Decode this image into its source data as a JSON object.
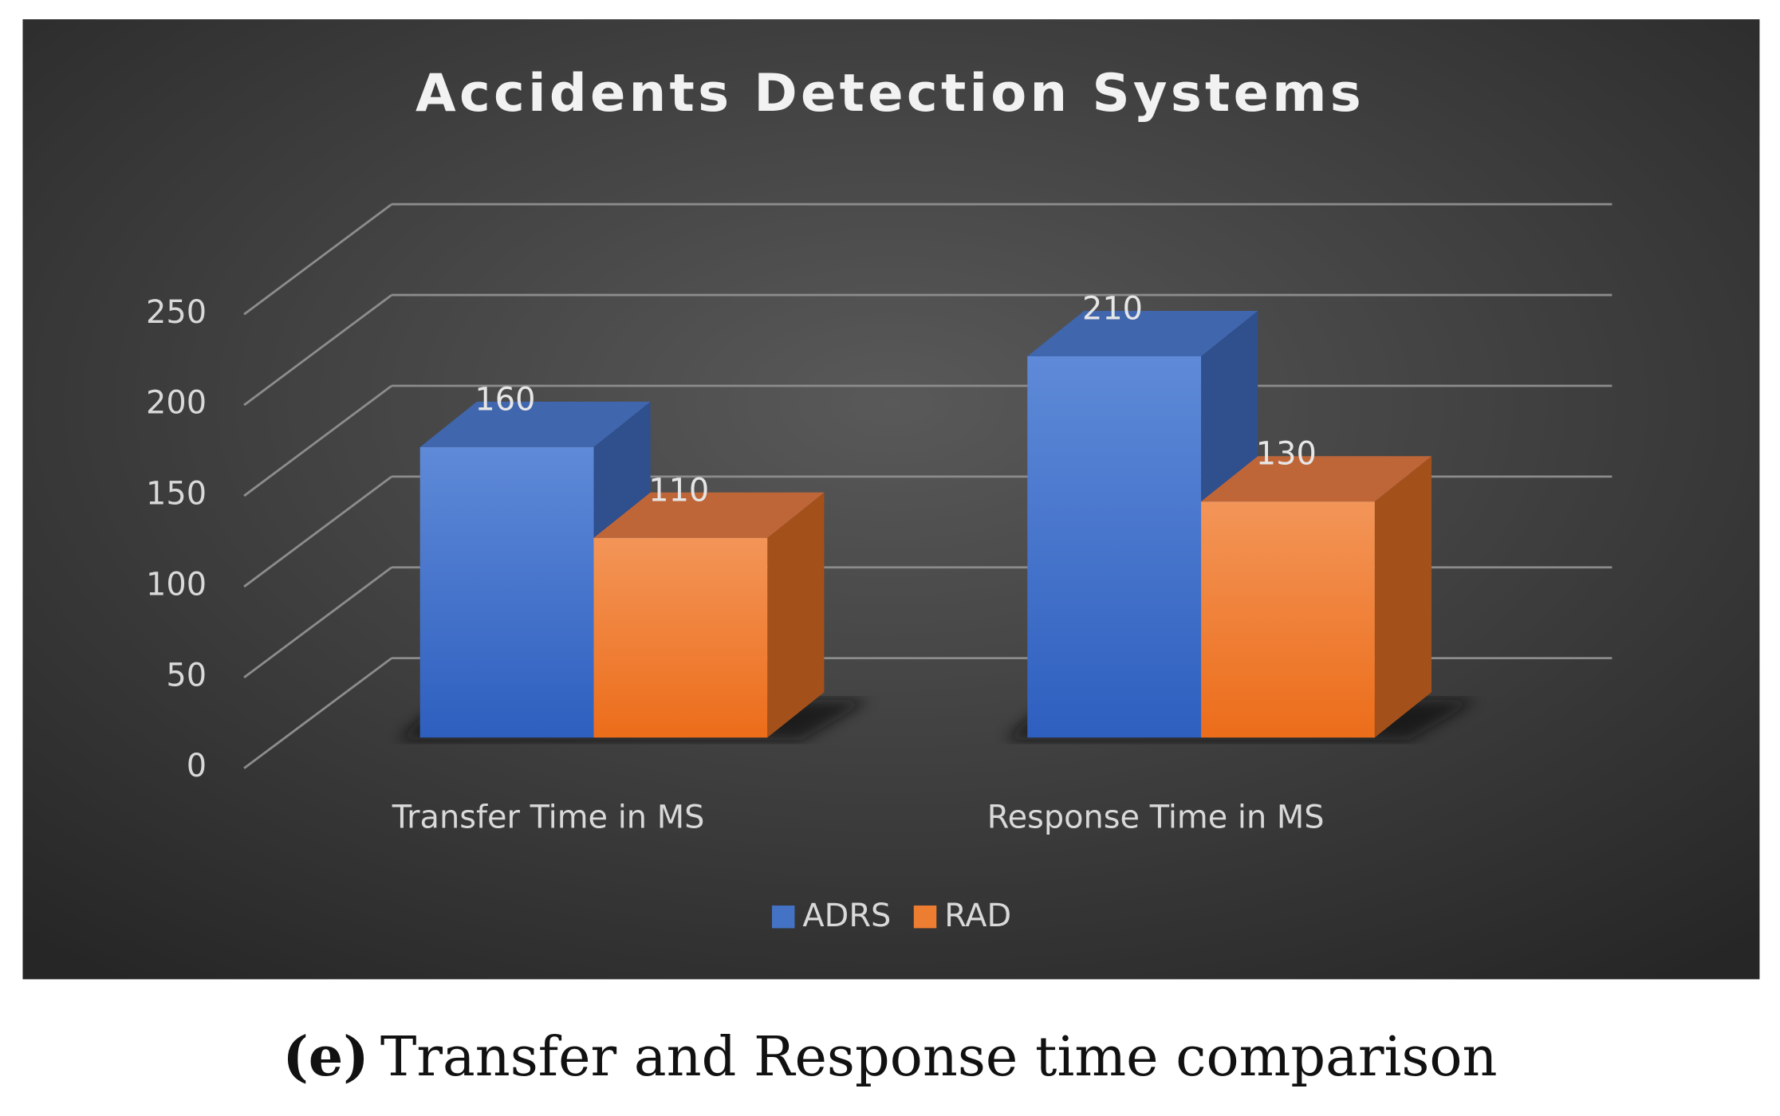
{
  "chart_data": {
    "type": "bar3d",
    "title": "Accidents Detection Systems",
    "categories": [
      "Transfer Time in MS",
      "Response Time in MS"
    ],
    "series": [
      {
        "name": "ADRS",
        "color": "#4472c4",
        "values": [
          160,
          210
        ]
      },
      {
        "name": "RAD",
        "color": "#ed7d31",
        "values": [
          110,
          130
        ]
      }
    ],
    "ylim": [
      0,
      250
    ],
    "yticks": [
      0,
      50,
      100,
      150,
      200,
      250
    ],
    "grid": true,
    "legend": "bottom",
    "caption_label": "(e)",
    "caption": "Transfer and Response time comparison"
  }
}
